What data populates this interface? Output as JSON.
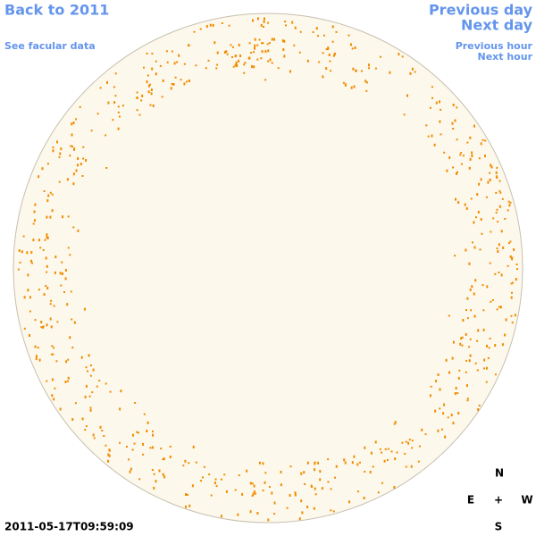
{
  "links": {
    "back_year": "Back to 2011",
    "facular_data": "See facular data",
    "previous_day": "Previous day",
    "next_day": "Next day",
    "previous_hour": "Previous hour",
    "next_hour": "Next hour"
  },
  "timestamp": "2011-05-17T09:59:09",
  "compass": {
    "north": "N",
    "east": "E",
    "center": "+",
    "west": "W",
    "south": "S"
  }
}
